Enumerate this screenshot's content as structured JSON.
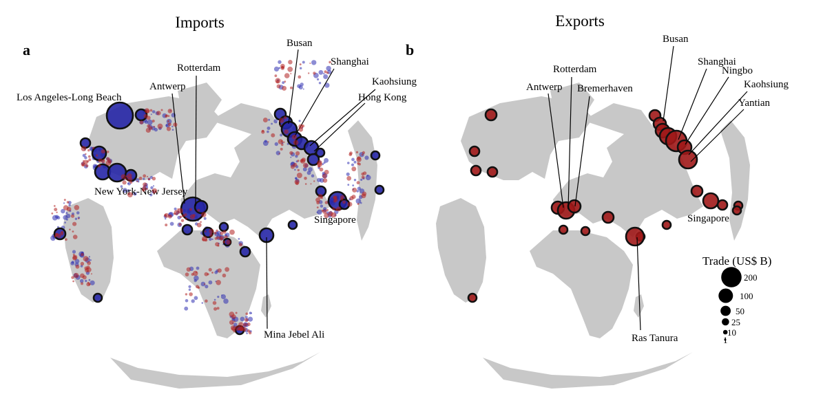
{
  "panels": [
    {
      "letter": "a",
      "title": "Imports",
      "colors": {
        "fill": "#2626a6",
        "stroke": "#111111",
        "small": "#3030b0"
      },
      "labels": [
        "Los Angeles-Long Beach",
        "Rotterdam",
        "Antwerp",
        "New York-New Jersey",
        "Busan",
        "Shanghai",
        "Kaohsiung",
        "Hong Kong",
        "Singapore",
        "Mina Jebel Ali"
      ]
    },
    {
      "letter": "b",
      "title": "Exports",
      "colors": {
        "fill": "#a01818",
        "stroke": "#111111",
        "small": "#b02020"
      },
      "labels": [
        "Busan",
        "Shanghai",
        "Ningbo",
        "Kaohsiung",
        "Yantian",
        "Rotterdam",
        "Antwerp",
        "Bremerhaven",
        "Singapore",
        "Ras Tanura"
      ]
    }
  ],
  "legend": {
    "title": "Trade (US$ B)",
    "entries": [
      {
        "label": "200",
        "value": 200
      },
      {
        "label": "100",
        "value": 100
      },
      {
        "label": "50",
        "value": 50
      },
      {
        "label": "25",
        "value": 25
      },
      {
        "label": "10",
        "value": 10
      },
      {
        "label": "1",
        "value": 1
      }
    ]
  },
  "colors": {
    "land": "#c8c8c8",
    "background": "#ffffff",
    "legend_circle": "#000000"
  }
}
